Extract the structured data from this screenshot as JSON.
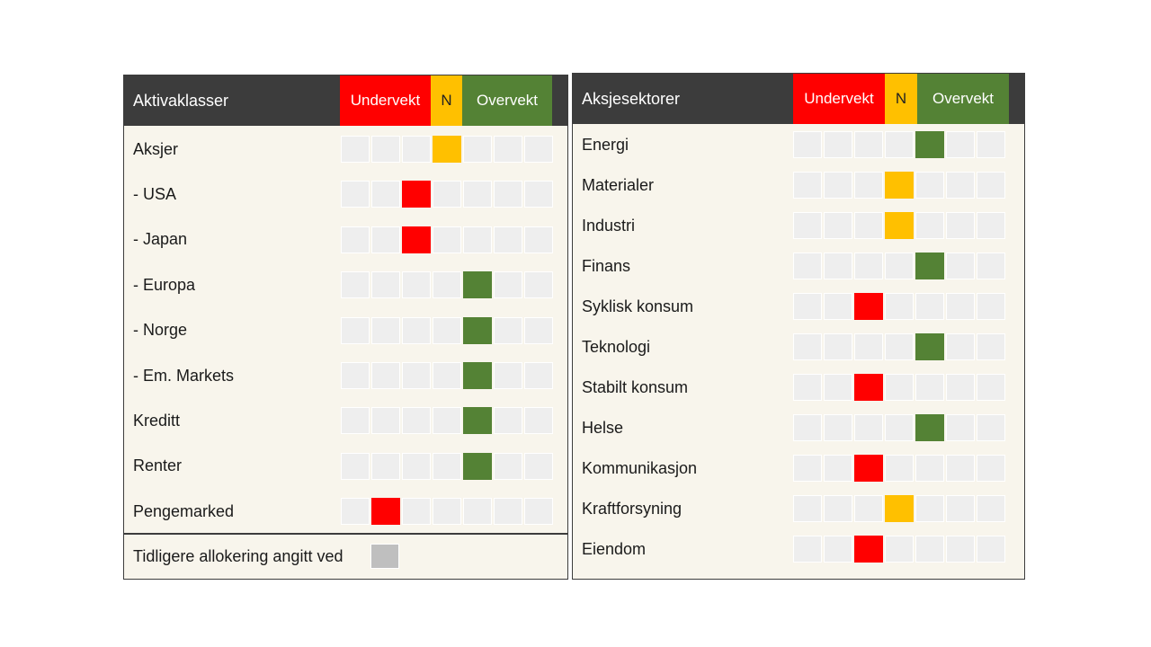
{
  "colors": {
    "under": "#ff0000",
    "neutral": "#ffc000",
    "over": "#548235",
    "empty": "#eeeeee",
    "previous": "#bfbfbf"
  },
  "left": {
    "title": "Aktivaklasser",
    "under_label": "Undervekt",
    "neutral_label": "N",
    "over_label": "Overvekt",
    "rows": [
      {
        "label": "Aksjer",
        "position": 3
      },
      {
        "label": "- USA",
        "position": 2
      },
      {
        "label": "- Japan",
        "position": 2
      },
      {
        "label": "- Europa",
        "position": 4
      },
      {
        "label": "- Norge",
        "position": 4
      },
      {
        "label": "- Em. Markets",
        "position": 4
      },
      {
        "label": "Kreditt",
        "position": 4
      },
      {
        "label": "Renter",
        "position": 4
      },
      {
        "label": "Pengemarked",
        "position": 1
      }
    ],
    "legend_label": "Tidligere allokering angitt ved"
  },
  "right": {
    "title": "Aksjesektorer",
    "under_label": "Undervekt",
    "neutral_label": "N",
    "over_label": "Overvekt",
    "rows": [
      {
        "label": "Energi",
        "position": 4
      },
      {
        "label": "Materialer",
        "position": 3
      },
      {
        "label": "Industri",
        "position": 3
      },
      {
        "label": "Finans",
        "position": 4
      },
      {
        "label": "Syklisk konsum",
        "position": 2
      },
      {
        "label": "Teknologi",
        "position": 4
      },
      {
        "label": "Stabilt konsum",
        "position": 2
      },
      {
        "label": "Helse",
        "position": 4
      },
      {
        "label": "Kommunikasjon",
        "position": 2
      },
      {
        "label": "Kraftforsyning",
        "position": 3
      },
      {
        "label": "Eiendom",
        "position": 2
      }
    ]
  }
}
